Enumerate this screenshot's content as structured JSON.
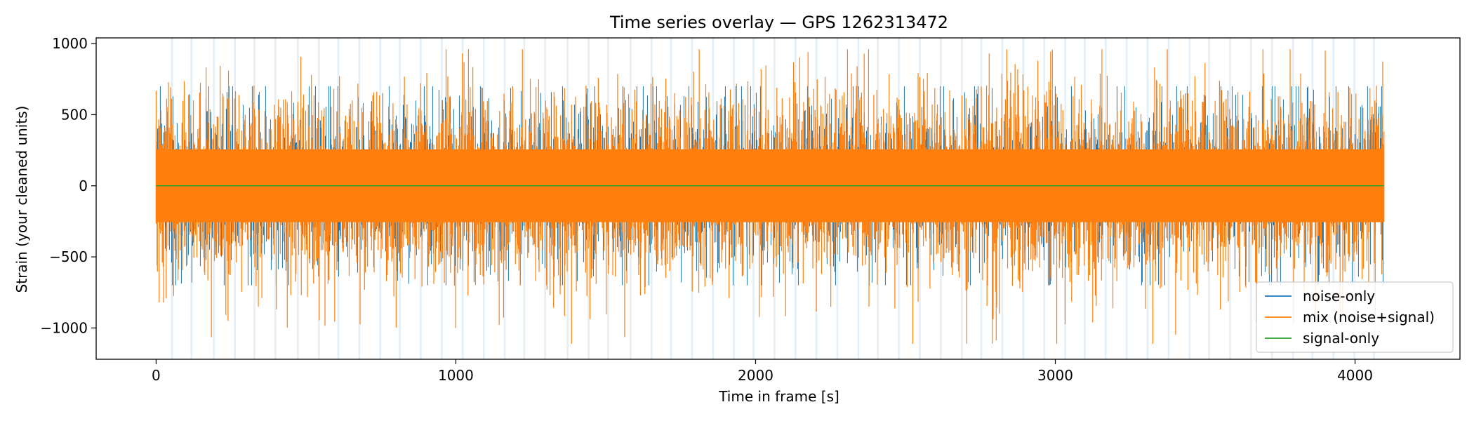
{
  "chart_data": {
    "type": "line",
    "title": "Time series overlay — GPS 1262313472",
    "xlabel": "Time in frame [s]",
    "ylabel": "Strain (your cleaned units)",
    "xlim": [
      -200,
      4350
    ],
    "ylim": [
      -1220,
      1040
    ],
    "x_ticks": [
      0,
      1000,
      2000,
      3000,
      4000
    ],
    "x_tick_labels": [
      "0",
      "1000",
      "2000",
      "3000",
      "4000"
    ],
    "y_ticks": [
      1000,
      500,
      0,
      -500,
      -1000
    ],
    "y_tick_labels": [
      "1000",
      "500",
      "0",
      "−500",
      "−1000"
    ],
    "grid": false,
    "legend_position": "bottom-right",
    "series": [
      {
        "name": "noise-only",
        "color": "#1f77b4",
        "x_range": [
          0,
          4096
        ],
        "amplitude_range": [
          -700,
          700
        ]
      },
      {
        "name": "mix (noise+signal)",
        "color": "#ff7f0e",
        "x_range": [
          0,
          4096
        ],
        "amplitude_range": [
          -1110,
          960
        ],
        "notable_extremes": [
          {
            "x": 2790,
            "y": -1110
          },
          {
            "x": 2780,
            "y": 930
          },
          {
            "x": 3900,
            "y": 950
          },
          {
            "x": 240,
            "y": -950
          },
          {
            "x": 595,
            "y": -955
          },
          {
            "x": 1000,
            "y": -1000
          },
          {
            "x": 3550,
            "y": -870
          }
        ]
      },
      {
        "name": "signal-only",
        "color": "#2ca02c",
        "x": [
          0,
          4096
        ],
        "y": [
          0,
          0
        ]
      }
    ],
    "shaded_intervals": {
      "color": "#1f77b4",
      "starts": [
        50,
        115,
        190,
        260,
        325,
        395,
        470,
        540,
        605,
        675,
        745,
        810,
        880,
        950,
        1020,
        1090,
        1160,
        1225,
        1295,
        1370,
        1440,
        1505,
        1580,
        1650,
        1715,
        1785,
        1855,
        1925,
        1990,
        2060,
        2130,
        2200,
        2270,
        2340,
        2405,
        2475,
        2545,
        2615,
        2685,
        2750,
        2820,
        2890,
        2960,
        3030,
        3095,
        3165,
        3235,
        3305,
        3375,
        3445,
        3510,
        3580,
        3650,
        3720,
        3790,
        3855,
        3925,
        3995,
        4060
      ],
      "width": 6
    }
  }
}
